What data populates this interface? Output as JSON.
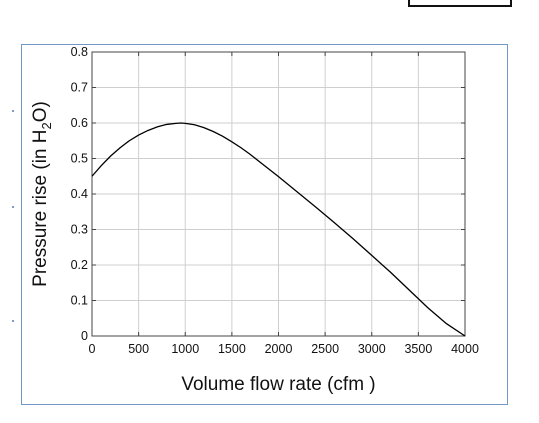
{
  "chart_data": {
    "type": "line",
    "xlabel": "Volume flow rate (cfm )",
    "ylabel_main": "Pressure rise (in H",
    "ylabel_sub": "2",
    "ylabel_tail": "O)",
    "xlim": [
      0,
      4000
    ],
    "ylim": [
      0,
      0.8
    ],
    "x_ticks": [
      0,
      500,
      1000,
      1500,
      2000,
      2500,
      3000,
      3500,
      4000
    ],
    "x_tick_labels": [
      "0",
      "500",
      "1000",
      "1500",
      "2000",
      "2500",
      "3000",
      "3500",
      "4000"
    ],
    "y_ticks": [
      0,
      0.1,
      0.2,
      0.3,
      0.4,
      0.5,
      0.6,
      0.7,
      0.8
    ],
    "y_tick_labels": [
      "0",
      "0.1",
      "0.2",
      "0.3",
      "0.4",
      "0.5",
      "0.6",
      "0.7",
      "0.8"
    ],
    "grid": true,
    "series": [
      {
        "color": "#000000",
        "x": [
          0,
          100,
          200,
          300,
          400,
          500,
          600,
          700,
          800,
          900,
          950,
          1000,
          1100,
          1200,
          1300,
          1400,
          1500,
          1600,
          1700,
          1800,
          2000,
          2200,
          2400,
          2600,
          2800,
          3000,
          3200,
          3400,
          3600,
          3800,
          4000
        ],
        "y": [
          0.45,
          0.48,
          0.507,
          0.53,
          0.55,
          0.566,
          0.579,
          0.589,
          0.596,
          0.599,
          0.6,
          0.599,
          0.595,
          0.587,
          0.576,
          0.563,
          0.547,
          0.53,
          0.511,
          0.49,
          0.449,
          0.406,
          0.363,
          0.319,
          0.274,
          0.227,
          0.18,
          0.13,
          0.08,
          0.035,
          0.0
        ]
      }
    ]
  }
}
